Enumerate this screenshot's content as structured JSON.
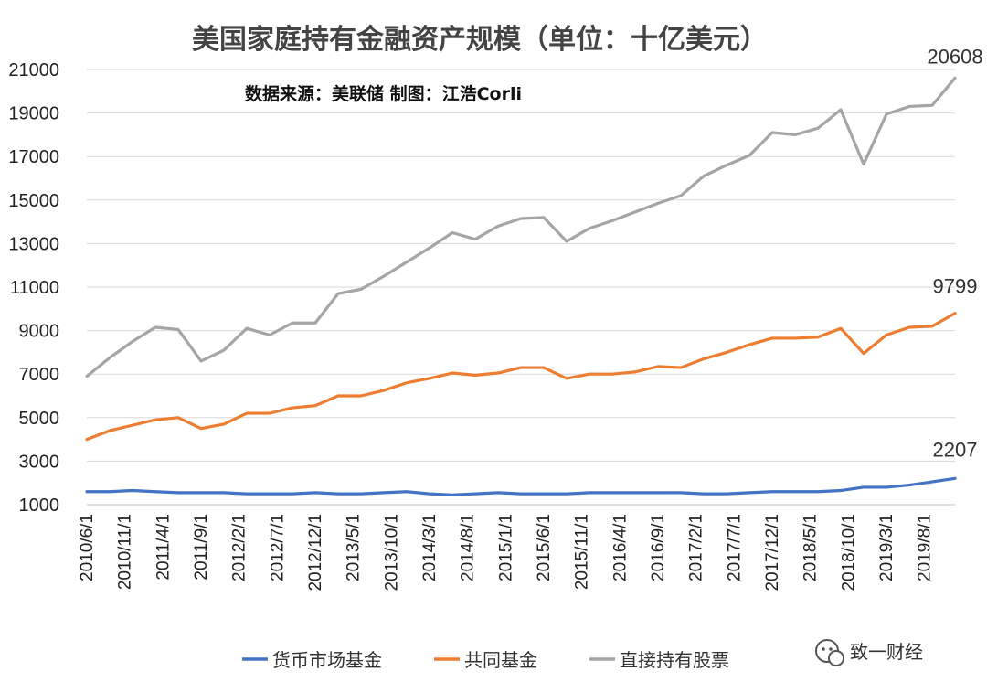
{
  "chart_data": {
    "type": "line",
    "title": "美国家庭持有金融资产规模（单位：十亿美元）",
    "subtitle": "数据来源：美联储 制图：江浩Corli",
    "ylim": [
      1000,
      21000
    ],
    "yticks": [
      1000,
      3000,
      5000,
      7000,
      9000,
      11000,
      13000,
      15000,
      17000,
      19000,
      21000
    ],
    "grid": true,
    "legend_position": "bottom",
    "x": [
      "2010/6/1",
      "2010/9/1",
      "2010/12/1",
      "2011/3/1",
      "2011/6/1",
      "2011/9/1",
      "2011/12/1",
      "2012/3/1",
      "2012/6/1",
      "2012/9/1",
      "2012/12/1",
      "2013/3/1",
      "2013/6/1",
      "2013/9/1",
      "2013/12/1",
      "2014/3/1",
      "2014/6/1",
      "2014/9/1",
      "2014/12/1",
      "2015/3/1",
      "2015/6/1",
      "2015/9/1",
      "2015/12/1",
      "2016/3/1",
      "2016/6/1",
      "2016/9/1",
      "2016/12/1",
      "2017/3/1",
      "2017/6/1",
      "2017/9/1",
      "2017/12/1",
      "2018/3/1",
      "2018/6/1",
      "2018/9/1",
      "2018/12/1",
      "2019/3/1",
      "2019/6/1",
      "2019/9/1",
      "2019/12/1"
    ],
    "xtick_labels": [
      "2010/6/1",
      "2010/11/1",
      "2011/4/1",
      "2011/9/1",
      "2012/2/1",
      "2012/7/1",
      "2012/12/1",
      "2013/5/1",
      "2013/10/1",
      "2014/3/1",
      "2014/8/1",
      "2015/1/1",
      "2015/6/1",
      "2015/11/1",
      "2016/4/1",
      "2016/9/1",
      "2017/2/1",
      "2017/7/1",
      "2017/12/1",
      "2018/5/1",
      "2018/10/1",
      "2019/3/1",
      "2019/8/1"
    ],
    "series": [
      {
        "name": "货币市场基金",
        "color": "#4472C4",
        "values": [
          1600,
          1600,
          1650,
          1600,
          1550,
          1550,
          1550,
          1500,
          1500,
          1500,
          1550,
          1500,
          1500,
          1550,
          1600,
          1500,
          1450,
          1500,
          1550,
          1500,
          1500,
          1500,
          1550,
          1550,
          1550,
          1550,
          1550,
          1500,
          1500,
          1550,
          1600,
          1600,
          1600,
          1650,
          1800,
          1800,
          1900,
          2050,
          2207
        ],
        "end_label": "2207"
      },
      {
        "name": "共同基金",
        "color": "#ED7D31",
        "values": [
          4000,
          4400,
          4650,
          4900,
          5000,
          4500,
          4700,
          5200,
          5200,
          5450,
          5550,
          6000,
          6000,
          6250,
          6600,
          6800,
          7050,
          6950,
          7050,
          7300,
          7300,
          6800,
          7000,
          7000,
          7100,
          7350,
          7300,
          7700,
          8000,
          8350,
          8650,
          8650,
          8700,
          9100,
          7950,
          8800,
          9150,
          9200,
          9799
        ],
        "end_label": "9799"
      },
      {
        "name": "直接持有股票",
        "color": "#A5A5A5",
        "values": [
          6900,
          7750,
          8500,
          9150,
          9050,
          7600,
          8100,
          9100,
          8800,
          9350,
          9350,
          10700,
          10900,
          11500,
          12150,
          12800,
          13500,
          13200,
          13800,
          14150,
          14200,
          13100,
          13700,
          14050,
          14450,
          14850,
          15200,
          16100,
          16600,
          17050,
          18100,
          18000,
          18300,
          19150,
          16650,
          18950,
          19300,
          19350,
          20608
        ],
        "end_label": "20608"
      }
    ]
  },
  "watermark": {
    "text": "致一财经",
    "icon": "wechat-icon"
  }
}
